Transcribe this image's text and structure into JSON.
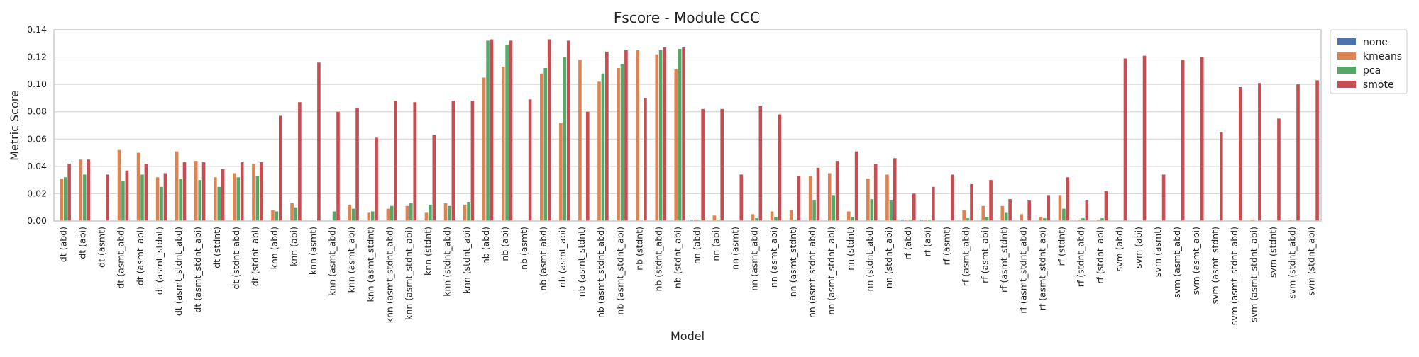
{
  "chart_data": {
    "type": "bar",
    "title": "Fscore - Module CCC",
    "xlabel": "Model",
    "ylabel": "Metric Score",
    "ylim": [
      0,
      0.14
    ],
    "yticks": [
      0.0,
      0.02,
      0.04,
      0.06,
      0.08,
      0.1,
      0.12,
      0.14
    ],
    "ytick_labels": [
      "0.00",
      "0.02",
      "0.04",
      "0.06",
      "0.08",
      "0.10",
      "0.12",
      "0.14"
    ],
    "grid": true,
    "legend_position": "outside-top-right",
    "categories": [
      "dt (abd)",
      "dt (abi)",
      "dt (asmt)",
      "dt (asmt_abd)",
      "dt (asmt_abi)",
      "dt (asmt_stdnt)",
      "dt (asmt_stdnt_abd)",
      "dt (asmt_stdnt_abi)",
      "dt (stdnt)",
      "dt (stdnt_abd)",
      "dt (stdnt_abi)",
      "knn (abd)",
      "knn (abi)",
      "knn (asmt)",
      "knn (asmt_abd)",
      "knn (asmt_abi)",
      "knn (asmt_stdnt)",
      "knn (asmt_stdnt_abd)",
      "knn (asmt_stdnt_abi)",
      "knn (stdnt)",
      "knn (stdnt_abd)",
      "knn (stdnt_abi)",
      "nb (abd)",
      "nb (abi)",
      "nb (asmt)",
      "nb (asmt_abd)",
      "nb (asmt_abi)",
      "nb (asmt_stdnt)",
      "nb (asmt_stdnt_abd)",
      "nb (asmt_stdnt_abi)",
      "nb (stdnt)",
      "nb (stdnt_abd)",
      "nb (stdnt_abi)",
      "nn (abd)",
      "nn (abi)",
      "nn (asmt)",
      "nn (asmt_abd)",
      "nn (asmt_abi)",
      "nn (asmt_stdnt)",
      "nn (asmt_stdnt_abd)",
      "nn (asmt_stdnt_abi)",
      "nn (stdnt)",
      "nn (stdnt_abd)",
      "nn (stdnt_abi)",
      "rf (abd)",
      "rf (abi)",
      "rf (asmt)",
      "rf (asmt_abd)",
      "rf (asmt_abi)",
      "rf (asmt_stdnt)",
      "rf (asmt_stdnt_abd)",
      "rf (asmt_stdnt_abi)",
      "rf (stdnt)",
      "rf (stdnt_abd)",
      "rf (stdnt_abi)",
      "svm (abd)",
      "svm (abi)",
      "svm (asmt)",
      "svm (asmt_abd)",
      "svm (asmt_abi)",
      "svm (asmt_stdnt)",
      "svm (asmt_stdnt_abd)",
      "svm (asmt_stdnt_abi)",
      "svm (stdnt)",
      "svm (stdnt_abd)",
      "svm (stdnt_abi)"
    ],
    "series": [
      {
        "name": "none",
        "color": "#4c72b0",
        "values": [
          0,
          0,
          0,
          0,
          0,
          0,
          0,
          0,
          0,
          0,
          0,
          0,
          0,
          0,
          0,
          0,
          0,
          0,
          0,
          0,
          0,
          0,
          0,
          0,
          0,
          0,
          0,
          0,
          0,
          0,
          0,
          0,
          0,
          0.001,
          0,
          0,
          0,
          0,
          0,
          0,
          0,
          0,
          0,
          0,
          0.001,
          0.001,
          0,
          0,
          0,
          0,
          0,
          0,
          0,
          0,
          0,
          0,
          0,
          0,
          0,
          0,
          0,
          0,
          0,
          0,
          0,
          0
        ]
      },
      {
        "name": "kmeans",
        "color": "#dd8452",
        "values": [
          0.031,
          0.045,
          0,
          0.052,
          0.05,
          0.032,
          0.051,
          0.044,
          0.032,
          0.035,
          0.042,
          0.008,
          0.013,
          0,
          0,
          0.012,
          0.006,
          0.009,
          0.011,
          0.006,
          0.013,
          0.012,
          0.105,
          0.113,
          0,
          0.108,
          0.072,
          0.118,
          0.102,
          0.112,
          0.125,
          0.122,
          0.111,
          0.001,
          0.004,
          0,
          0.005,
          0.007,
          0.008,
          0.033,
          0.035,
          0.007,
          0.031,
          0.034,
          0.001,
          0.001,
          0,
          0.008,
          0.011,
          0.011,
          0.005,
          0.003,
          0.019,
          0.001,
          0.001,
          0,
          0,
          0,
          0,
          0,
          0,
          0,
          0.001,
          0,
          0.001,
          0
        ]
      },
      {
        "name": "pca",
        "color": "#55a868",
        "values": [
          0.032,
          0.034,
          0,
          0.029,
          0.034,
          0.025,
          0.031,
          0.03,
          0.025,
          0.032,
          0.033,
          0.007,
          0.01,
          0,
          0.007,
          0.009,
          0.007,
          0.011,
          0.013,
          0.012,
          0.011,
          0.014,
          0.132,
          0.129,
          0,
          0.112,
          0.12,
          0,
          0.108,
          0.115,
          0,
          0.125,
          0.126,
          0.001,
          0.001,
          0,
          0.002,
          0.003,
          0.001,
          0.015,
          0.019,
          0.003,
          0.016,
          0.015,
          0.001,
          0.001,
          0,
          0.002,
          0.003,
          0.006,
          0,
          0.002,
          0.009,
          0.002,
          0.002,
          0,
          0,
          0,
          0,
          0,
          0,
          0,
          0,
          0,
          0,
          0
        ]
      },
      {
        "name": "smote",
        "color": "#c44e52",
        "values": [
          0.042,
          0.045,
          0.034,
          0.037,
          0.042,
          0.035,
          0.043,
          0.043,
          0.038,
          0.043,
          0.043,
          0.077,
          0.087,
          0.116,
          0.08,
          0.083,
          0.061,
          0.088,
          0.087,
          0.063,
          0.088,
          0.088,
          0.133,
          0.132,
          0.089,
          0.133,
          0.132,
          0.08,
          0.124,
          0.125,
          0.09,
          0.127,
          0.127,
          0.082,
          0.082,
          0.034,
          0.084,
          0.078,
          0.033,
          0.039,
          0.044,
          0.051,
          0.042,
          0.046,
          0.02,
          0.025,
          0.034,
          0.027,
          0.03,
          0.016,
          0.015,
          0.019,
          0.032,
          0.015,
          0.022,
          0.119,
          0.121,
          0.034,
          0.118,
          0.12,
          0.065,
          0.098,
          0.101,
          0.075,
          0.1,
          0.103
        ]
      }
    ]
  },
  "style": {
    "plot_bg": "#ffffff",
    "frame_color": "#cccccc",
    "grid_color": "#d9d9d9",
    "legend_border": "#cccccc"
  }
}
